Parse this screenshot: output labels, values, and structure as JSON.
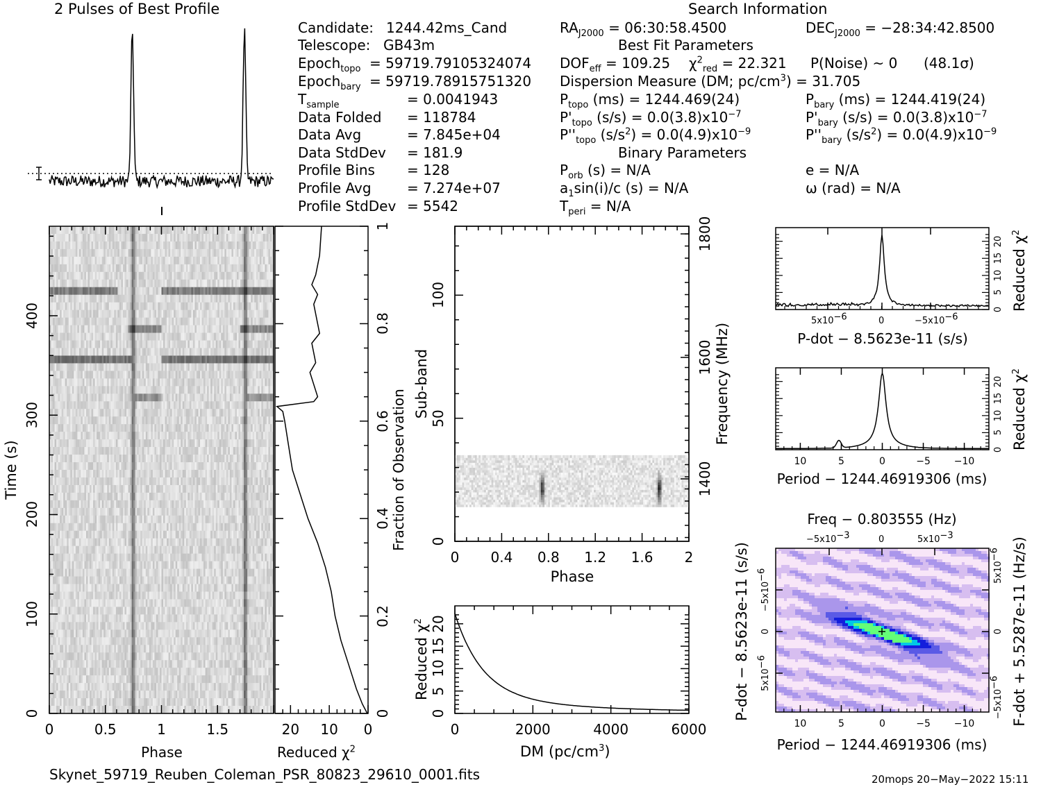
{
  "profile_title": "2 Pulses of Best Profile",
  "search_info_title": "Search Information",
  "candidate_info": [
    {
      "label": "Candidate:",
      "value": "1244.42ms_Cand"
    },
    {
      "label": "Telescope:",
      "value": "GB43m"
    },
    {
      "label": "Epoch",
      "sub": "topo",
      "value": "= 59719.79105324074"
    },
    {
      "label": "Epoch",
      "sub": "bary",
      "value": "= 59719.78915751320"
    },
    {
      "label": "T",
      "sub": "sample",
      "value": "=   0.0041943"
    },
    {
      "label": "Data Folded",
      "value": "=   118784"
    },
    {
      "label": "Data Avg",
      "value": "=   7.845e+04"
    },
    {
      "label": "Data StdDev",
      "value": "=   181.9"
    },
    {
      "label": "Profile Bins",
      "value": "=   128"
    },
    {
      "label": "Profile Avg",
      "value": "=   7.274e+07"
    },
    {
      "label": "Profile StdDev",
      "value": "=   5542"
    }
  ],
  "ra_label": "RA",
  "ra_sub": "J2000",
  "ra_value": "= 06:30:58.4500",
  "dec_label": "DEC",
  "dec_sub": "J2000",
  "dec_value": "= −28:34:42.8500",
  "best_fit_title": "Best Fit Parameters",
  "dof_text": "DOF",
  "dof_sub": "eff",
  "dof_value": "= 109.25",
  "chi_text": "χ",
  "chi_sup": "2",
  "chi_sub": "red",
  "chi_value": "= 22.321",
  "pnoise_text": "P(Noise) ~ 0",
  "sigma_text": "(48.1σ)",
  "dm_text": "Dispersion Measure (DM; pc/cm",
  "dm_sup": "3",
  "dm_value": ") = 31.705",
  "ptopo": {
    "a": "P",
    "sub": "topo",
    "b": " (ms) =  1244.469(24)"
  },
  "pbary": {
    "a": "P",
    "sub": "bary",
    "b": " (ms) =  1244.419(24)"
  },
  "pdtopo": {
    "a": "P'",
    "sub": "topo",
    "b": " (s/s) = 0.0(3.8)x10",
    "sup": "−7"
  },
  "pdbary": {
    "a": "P'",
    "sub": "bary",
    "b": " (s/s) = 0.0(3.8)x10",
    "sup": "−7"
  },
  "pddtopo": {
    "a": "P''",
    "sub": "topo",
    "b": " (s/s",
    "sup1": "2",
    "c": ") = 0.0(4.9)x10",
    "sup": "−9"
  },
  "pddbary": {
    "a": "P''",
    "sub": "bary",
    "b": " (s/s",
    "sup1": "2",
    "c": ") = 0.0(4.9)x10",
    "sup": "−9"
  },
  "binary_title": "Binary Parameters",
  "porb": {
    "a": "P",
    "sub": "orb",
    "b": " (s) = N/A"
  },
  "ecc": "e = N/A",
  "asini": {
    "a": "a",
    "sub": "1",
    "b": "sin(i)/c (s) = N/A"
  },
  "omega": "ω (rad) = N/A",
  "tperi": {
    "a": "T",
    "sub": "peri",
    "b": " = N/A"
  },
  "footer_file": "Skynet_59719_Reuben_Coleman_PSR_80823_29610_0001.fits",
  "footer_stamp": "20mops 20−May−2022 15:11",
  "chart_data": [
    {
      "type": "line",
      "name": "pulse-profile",
      "title": "2 Pulses of Best Profile",
      "x_range": [
        0,
        2
      ],
      "peaks": [
        0.74,
        1.74
      ],
      "baseline": 0.12,
      "peak_height": 1.0
    },
    {
      "type": "heatmap",
      "name": "time-phase",
      "xlabel": "Phase",
      "ylabel": "Time (s)",
      "xticks": [
        "0",
        "0.5",
        "1",
        "1.5"
      ],
      "yticks": [
        "0",
        "100",
        "200",
        "300",
        "400"
      ],
      "xlim": [
        0,
        2
      ],
      "ylim": [
        0,
        490
      ],
      "pulse_phases": [
        0.74,
        1.74
      ]
    },
    {
      "type": "line",
      "name": "chi2-vs-time",
      "xlabel": "Reduced χ",
      "xlabel_sup": "2",
      "xticks": [
        "20",
        "10",
        "0"
      ],
      "y2label": "Fraction of Observation",
      "y2ticks": [
        "0",
        "0.2",
        "0.4",
        "0.6",
        "0.8",
        "1"
      ],
      "xlim": [
        24,
        0
      ]
    },
    {
      "type": "heatmap",
      "name": "subband-phase",
      "xlabel": "Phase",
      "ylabel": "Sub-band",
      "y2label": "Frequency (MHz)",
      "xticks": [
        "0",
        "0.4",
        "0.8",
        "1.2",
        "1.6",
        "2"
      ],
      "yticks": [
        "0",
        "50",
        "100"
      ],
      "y2ticks": [
        "1400",
        "1600",
        "1800"
      ],
      "xlim": [
        0,
        2
      ],
      "ylim": [
        0,
        128
      ],
      "band_range": [
        14,
        35
      ]
    },
    {
      "type": "line",
      "name": "chi2-vs-dm",
      "xlabel": "DM (pc/cm",
      "xlabel_sup": "3",
      "xlabel_end": ")",
      "ylabel": "Reduced χ",
      "ylabel_sup": "2",
      "xticks": [
        "0",
        "2000",
        "4000",
        "6000"
      ],
      "yticks": [
        "0",
        "5",
        "10",
        "15",
        "20"
      ],
      "xlim": [
        0,
        6000
      ],
      "ylim": [
        0,
        24
      ],
      "x": [
        0,
        200,
        400,
        600,
        800,
        1000,
        1200,
        1500,
        2000,
        2500,
        3000,
        4000,
        5000,
        6000
      ],
      "y": [
        22,
        18.5,
        15.3,
        12.5,
        10.2,
        8.3,
        6.8,
        5.2,
        3.6,
        2.8,
        2.2,
        1.5,
        1.0,
        0.6
      ]
    },
    {
      "type": "line",
      "name": "chi2-vs-pdot",
      "xlabel": "P-dot − 8.5623e-11 (s/s)",
      "ylabel": "Reduced χ",
      "ylabel_sup": "2",
      "xticks": [
        "5x10",
        "0",
        "−5x10"
      ],
      "xticks_sup": "−6",
      "yticks": [
        "0",
        "5",
        "10",
        "15",
        "20"
      ],
      "ylim": [
        0,
        24
      ]
    },
    {
      "type": "line",
      "name": "chi2-vs-period",
      "xlabel": "Period − 1244.46919306 (ms)",
      "ylabel": "Reduced χ",
      "ylabel_sup": "2",
      "xticks": [
        "10",
        "5",
        "0",
        "−5",
        "−10"
      ],
      "yticks": [
        "0",
        "5",
        "10",
        "15",
        "20"
      ],
      "xlim": [
        13,
        -13
      ],
      "ylim": [
        0,
        24
      ],
      "x": [
        13,
        10,
        8,
        6,
        5.3,
        5,
        4,
        2,
        1,
        0.5,
        0,
        -0.5,
        -1,
        -2,
        -4,
        -8,
        -13
      ],
      "y": [
        0.3,
        0.4,
        0.6,
        1.2,
        2.5,
        1.3,
        1,
        2,
        5,
        12,
        22,
        12,
        5,
        2,
        0.8,
        0.4,
        0.3
      ]
    },
    {
      "type": "heatmap",
      "name": "p-pdot-plane",
      "title": "Freq − 0.803555 (Hz)",
      "xlabel": "Period − 1244.46919306 (ms)",
      "ylabel": "P-dot − 8.5623e-11 (s/s)",
      "y2label": "F-dot + 5.5287e-11 (Hz/s)",
      "xticks": [
        "10",
        "5",
        "0",
        "−5",
        "−10"
      ],
      "topticks": [
        "−5x10",
        "0",
        "5x10"
      ],
      "topticks_sup": "−3",
      "yticks": [
        "−5x10",
        "0",
        "5x10"
      ],
      "yticks_sup": "−6"
    }
  ]
}
